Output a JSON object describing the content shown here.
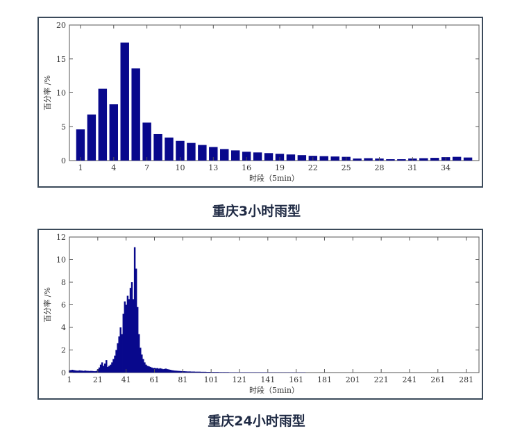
{
  "captions": [
    "重庆3小时雨型",
    "重庆24小时雨型"
  ],
  "chart_data": [
    {
      "type": "bar",
      "title": "重庆3小时雨型",
      "xlabel": "时段（5min）",
      "ylabel": "百分率 /%",
      "ylim": [
        0,
        20
      ],
      "yticks": [
        0,
        5,
        10,
        15,
        20
      ],
      "xlim": [
        0,
        37
      ],
      "xticks": [
        1,
        4,
        7,
        10,
        13,
        16,
        19,
        22,
        25,
        28,
        31,
        34
      ],
      "bar_color": "#08088c",
      "x": [
        1,
        2,
        3,
        4,
        5,
        6,
        7,
        8,
        9,
        10,
        11,
        12,
        13,
        14,
        15,
        16,
        17,
        18,
        19,
        20,
        21,
        22,
        23,
        24,
        25,
        26,
        27,
        28,
        29,
        30,
        31,
        32,
        33,
        34,
        35,
        36
      ],
      "values": [
        4.6,
        6.8,
        10.6,
        8.3,
        17.4,
        13.6,
        5.6,
        3.9,
        3.4,
        2.9,
        2.6,
        2.3,
        2.0,
        1.7,
        1.5,
        1.3,
        1.2,
        1.1,
        1.0,
        0.9,
        0.8,
        0.7,
        0.65,
        0.6,
        0.55,
        0.3,
        0.35,
        0.3,
        0.2,
        0.2,
        0.3,
        0.35,
        0.4,
        0.5,
        0.55,
        0.45
      ],
      "grid": false
    },
    {
      "type": "bar",
      "title": "重庆24小时雨型",
      "xlabel": "时段（5min）",
      "ylabel": "百分率 /%",
      "ylim": [
        0,
        12
      ],
      "yticks": [
        0,
        2,
        4,
        6,
        8,
        10,
        12
      ],
      "xlim": [
        1,
        290
      ],
      "xticks": [
        1,
        21,
        41,
        61,
        81,
        101,
        121,
        141,
        161,
        181,
        201,
        221,
        241,
        261,
        281
      ],
      "bar_color": "#08088c",
      "x_start": 1,
      "values": [
        0.2,
        0.22,
        0.25,
        0.22,
        0.2,
        0.18,
        0.17,
        0.2,
        0.18,
        0.17,
        0.15,
        0.18,
        0.16,
        0.15,
        0.14,
        0.15,
        0.14,
        0.13,
        0.12,
        0.15,
        0.3,
        0.45,
        0.7,
        0.9,
        0.6,
        0.8,
        1.1,
        0.5,
        0.6,
        0.7,
        0.9,
        1.2,
        1.5,
        2.0,
        2.6,
        3.2,
        4.0,
        3.4,
        5.2,
        6.3,
        6.0,
        6.8,
        6.5,
        7.5,
        8.0,
        6.5,
        11.1,
        9.2,
        5.8,
        3.4,
        2.2,
        1.6,
        1.2,
        0.9,
        0.7,
        0.6,
        0.55,
        0.5,
        0.45,
        0.4,
        0.42,
        0.38,
        0.4,
        0.35,
        0.38,
        0.35,
        0.3,
        0.32,
        0.35,
        0.3,
        0.28,
        0.25,
        0.22,
        0.2,
        0.18,
        0.17,
        0.16,
        0.15,
        0.14,
        0.13,
        0.12,
        0.12,
        0.11,
        0.1,
        0.1,
        0.1,
        0.09,
        0.09,
        0.09,
        0.08,
        0.08,
        0.08,
        0.08,
        0.07,
        0.07,
        0.07,
        0.07,
        0.06,
        0.06,
        0.06,
        0.06,
        0.05,
        0.05,
        0.05,
        0.05,
        0.05,
        0.04,
        0.04,
        0.04,
        0.04,
        0.04,
        0.04,
        0.04,
        0.03,
        0.03,
        0.03,
        0.03,
        0.03,
        0.03,
        0.03,
        0.03,
        0.03,
        0.03,
        0.03,
        0.03,
        0.03,
        0.03,
        0.03,
        0.03,
        0.03,
        0.03,
        0.03,
        0.03,
        0.03,
        0.03,
        0.03,
        0.03,
        0.03,
        0.03,
        0.03,
        0.03,
        0.02,
        0.02,
        0.02,
        0.02,
        0.02,
        0.02,
        0.02,
        0.02,
        0.02,
        0.02,
        0.02,
        0.02,
        0.02,
        0.02,
        0.02,
        0.02,
        0.02,
        0.02,
        0.02,
        0.02,
        0.02,
        0.02,
        0.02,
        0.02,
        0.02,
        0.02
      ],
      "grid": false
    }
  ]
}
